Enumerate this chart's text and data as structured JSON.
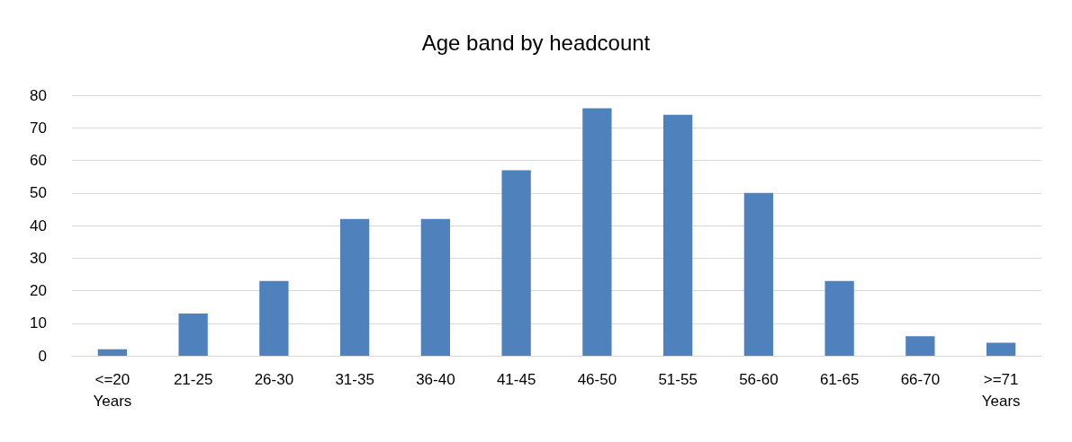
{
  "chart_data": {
    "type": "bar",
    "title": "Age band by headcount",
    "categories": [
      "<=20\nYears",
      "21-25",
      "26-30",
      "31-35",
      "36-40",
      "41-45",
      "46-50",
      "51-55",
      "56-60",
      "61-65",
      "66-70",
      ">=71\nYears"
    ],
    "values": [
      2,
      13,
      23,
      42,
      42,
      57,
      76,
      74,
      50,
      23,
      6,
      4
    ],
    "color": "#4f81bd",
    "ylim": [
      0,
      80
    ],
    "yticks": [
      0,
      10,
      20,
      30,
      40,
      50,
      60,
      70,
      80
    ],
    "grid": "y"
  }
}
